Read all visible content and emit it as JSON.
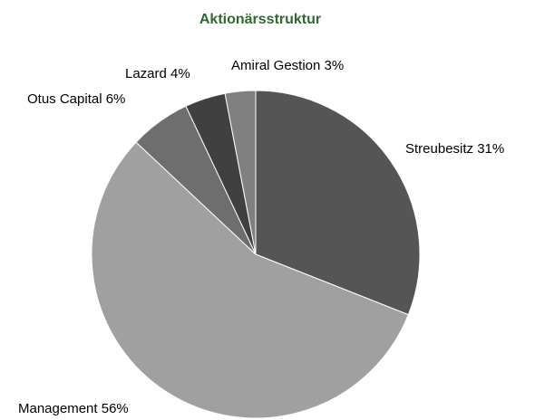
{
  "chart_data": {
    "type": "pie",
    "title": "Aktionärsstruktur",
    "categories": [
      "Streubesitz",
      "Management",
      "Otus Capital",
      "Lazard",
      "Amiral Gestion"
    ],
    "values": [
      31,
      56,
      6,
      4,
      3
    ],
    "value_labels": [
      "31%",
      "56%",
      "6%",
      "4%",
      "3%"
    ],
    "colors": [
      "#555555",
      "#a0a0a0",
      "#6e6e6e",
      "#404040",
      "#808080"
    ]
  }
}
